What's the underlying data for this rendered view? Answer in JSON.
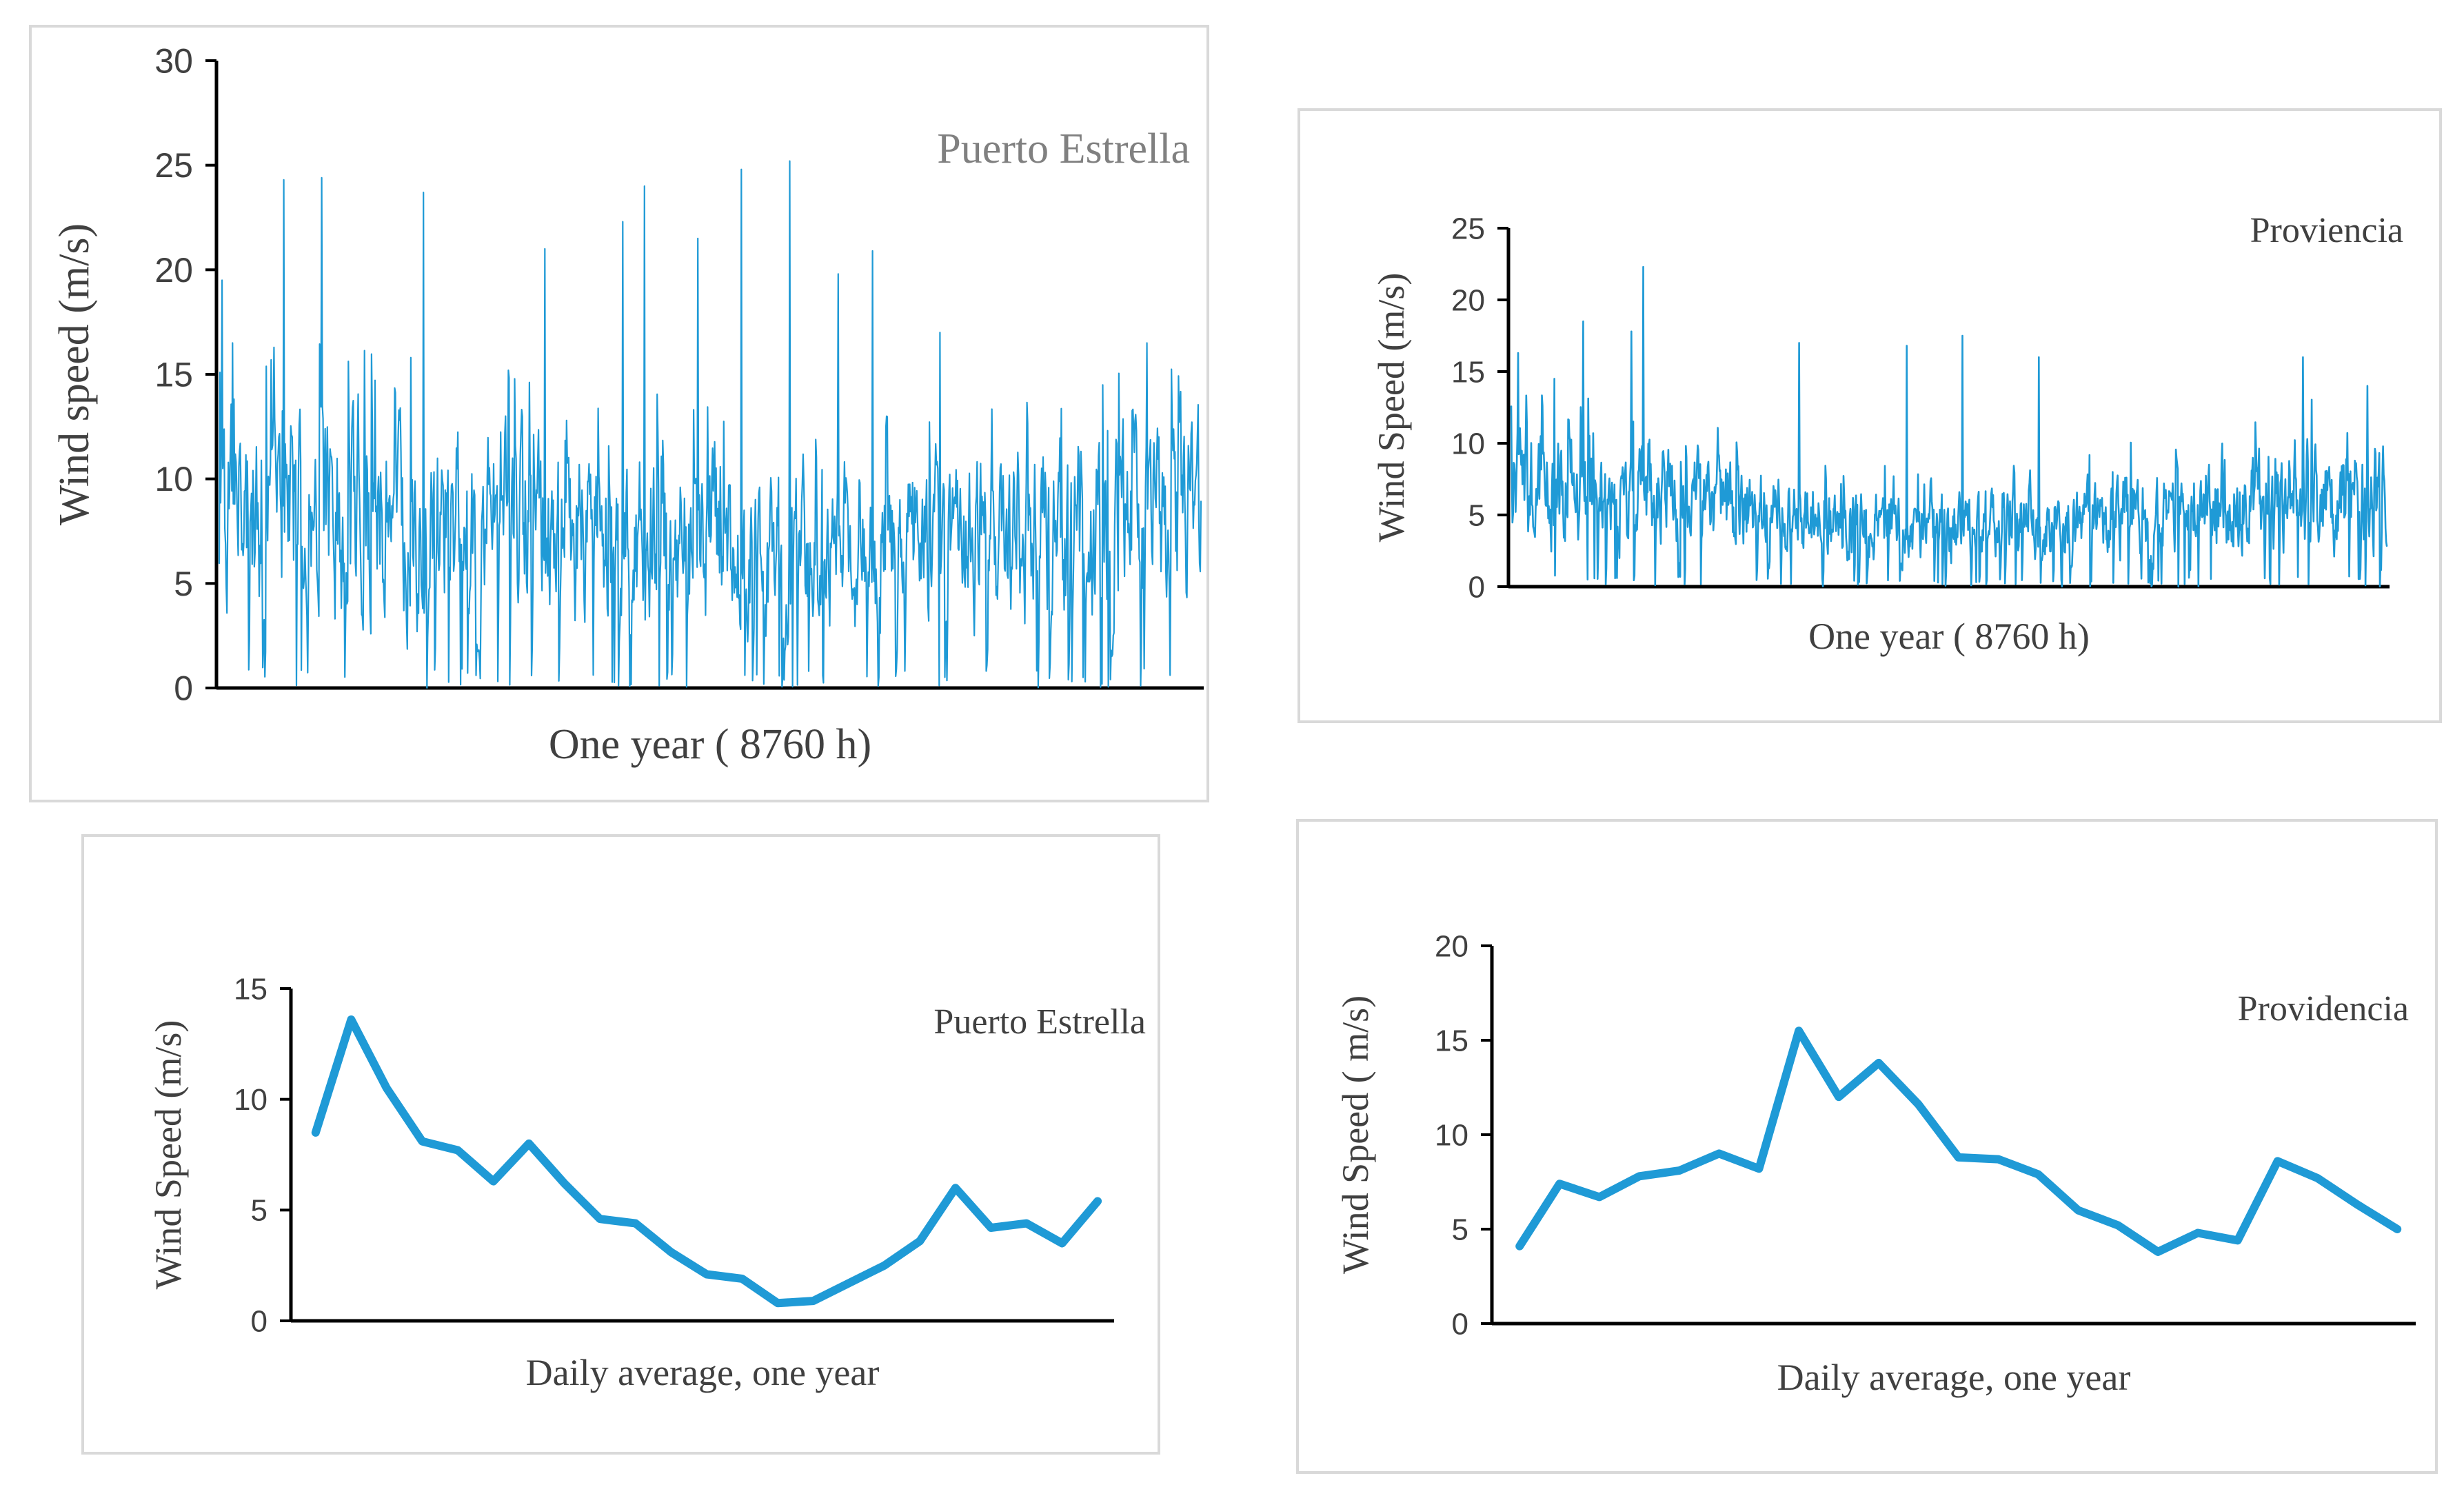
{
  "colors": {
    "series": "#1f9ad6",
    "axis": "#000000",
    "text": "#404040",
    "border": "#d9d9d9"
  },
  "chart_data": [
    {
      "id": "puerto-hourly",
      "type": "line",
      "title": "Puerto Estrella",
      "xlabel": "One year ( 8760 h)",
      "ylabel": "Wind speed (m/s)",
      "ylim": [
        0,
        30
      ],
      "yticks": [
        0,
        5,
        10,
        15,
        20,
        25,
        30
      ],
      "x_points": 8760,
      "x_ticks_shown": false,
      "series_mean": 7.5,
      "peaks": [
        {
          "day": 1,
          "value": 19.5
        },
        {
          "day": 5,
          "value": 16.5
        },
        {
          "day": 24,
          "value": 24.3
        },
        {
          "day": 38,
          "value": 24.4
        },
        {
          "day": 76,
          "value": 23.7
        },
        {
          "day": 121,
          "value": 21.0
        },
        {
          "day": 150,
          "value": 22.3
        },
        {
          "day": 158,
          "value": 24.0
        },
        {
          "day": 178,
          "value": 21.5
        },
        {
          "day": 194,
          "value": 24.8
        },
        {
          "day": 212,
          "value": 25.2
        },
        {
          "day": 230,
          "value": 19.8
        },
        {
          "day": 243,
          "value": 20.9
        },
        {
          "day": 268,
          "value": 17.0
        },
        {
          "day": 345,
          "value": 16.5
        }
      ]
    },
    {
      "id": "providencia-hourly",
      "type": "line",
      "title": "Proviencia",
      "xlabel": "One year ( 8760 h)",
      "ylabel": "Wind Speed (m/s)",
      "ylim": [
        0,
        25
      ],
      "yticks": [
        0,
        5,
        10,
        15,
        20,
        25
      ],
      "x_points": 8760,
      "x_ticks_shown": false,
      "series_mean": 5.5,
      "peaks": [
        {
          "day": 3,
          "value": 16.3
        },
        {
          "day": 18,
          "value": 14.5
        },
        {
          "day": 30,
          "value": 18.5
        },
        {
          "day": 50,
          "value": 17.8
        },
        {
          "day": 55,
          "value": 22.3
        },
        {
          "day": 120,
          "value": 17.0
        },
        {
          "day": 165,
          "value": 16.8
        },
        {
          "day": 188,
          "value": 17.5
        },
        {
          "day": 220,
          "value": 16.0
        },
        {
          "day": 330,
          "value": 16.0
        },
        {
          "day": 357,
          "value": 14.0
        }
      ]
    },
    {
      "id": "puerto-daily",
      "type": "line",
      "title": "Puerto Estrella",
      "xlabel": "Daily average, one year",
      "ylabel": "Wind Speed (m/s)",
      "ylim": [
        0,
        15
      ],
      "yticks": [
        0,
        5,
        10,
        15
      ],
      "x_ticks_shown": false,
      "values": [
        8.5,
        13.6,
        10.5,
        8.1,
        7.7,
        6.3,
        8.0,
        6.2,
        4.6,
        4.4,
        3.1,
        2.1,
        1.9,
        0.8,
        0.9,
        1.7,
        2.5,
        3.6,
        6.0,
        4.2,
        4.4,
        3.5,
        5.4
      ]
    },
    {
      "id": "providencia-daily",
      "type": "line",
      "title": "Providencia",
      "xlabel": "Daily average, one year",
      "ylabel": "Wind Speed ( m/s)",
      "ylim": [
        0,
        20
      ],
      "yticks": [
        0,
        5,
        10,
        15,
        20
      ],
      "x_ticks_shown": false,
      "values": [
        4.1,
        7.4,
        6.7,
        7.8,
        8.1,
        9.0,
        8.2,
        15.5,
        12.0,
        13.8,
        11.6,
        8.8,
        8.7,
        7.9,
        6.0,
        5.2,
        3.8,
        4.8,
        4.4,
        8.6,
        7.7,
        6.3,
        5.0
      ]
    }
  ]
}
